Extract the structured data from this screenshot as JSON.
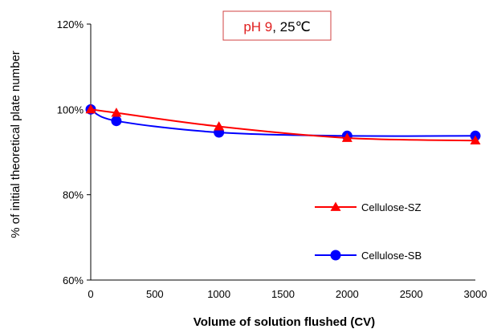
{
  "chart_data": {
    "type": "line",
    "xlabel": "Volume of solution flushed (CV)",
    "ylabel": "% of initial theoretical plate number",
    "xlim": [
      0,
      3000
    ],
    "ylim": [
      60,
      120
    ],
    "x_ticks": [
      0,
      500,
      1000,
      1500,
      2000,
      2500,
      3000
    ],
    "y_ticks": [
      60,
      80,
      100,
      120
    ],
    "y_tick_labels": [
      "60%",
      "80%",
      "100%",
      "120%"
    ],
    "grid": false,
    "legend_position": "right",
    "annotation": {
      "parts": [
        {
          "text": "pH 9",
          "color": "#e02020"
        },
        {
          "text": ", 25℃",
          "color": "#000000"
        }
      ],
      "border_color": "#d04040"
    },
    "series": [
      {
        "name": "Cellulose-SZ",
        "color": "#ff0000",
        "marker": "triangle",
        "x": [
          0,
          200,
          1000,
          2000,
          3000
        ],
        "y": [
          100,
          99.2,
          96.0,
          93.3,
          92.7
        ]
      },
      {
        "name": "Cellulose-SB",
        "color": "#0000ff",
        "marker": "circle",
        "x": [
          0,
          200,
          1000,
          2000,
          3000
        ],
        "y": [
          100,
          97.3,
          94.6,
          93.8,
          93.8
        ]
      }
    ]
  }
}
